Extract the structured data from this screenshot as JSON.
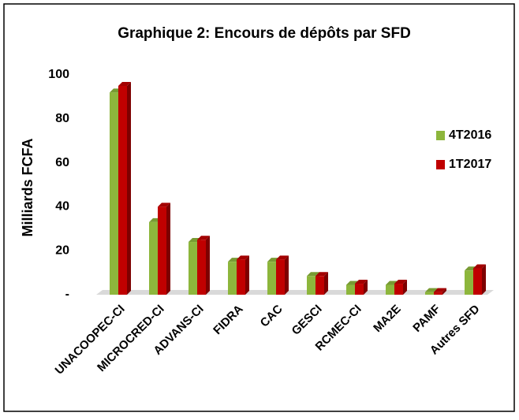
{
  "chart_data": {
    "type": "bar",
    "title": "Graphique 2: Encours de dépôts par SFD",
    "ylabel": "Milliards FCFA",
    "categories": [
      "UNACOOPEC-CI",
      "MICROCRED-CI",
      "ADVANS-CI",
      "FIDRA",
      "CAC",
      "GESCI",
      "RCMEC-CI",
      "MA2E",
      "PAMF",
      "Autres SFD"
    ],
    "series": [
      {
        "name": "4T2016",
        "color": "#8db63c",
        "values": [
          92,
          33,
          24,
          15,
          15,
          8.5,
          4.5,
          4.5,
          1.2,
          11
        ]
      },
      {
        "name": "1T2017",
        "color": "#c00000",
        "values": [
          95,
          40,
          25,
          16,
          16,
          8.5,
          5,
          5,
          1.2,
          12
        ]
      }
    ],
    "ylim": [
      0,
      100
    ],
    "yticks": [
      {
        "value": 0,
        "label": "-"
      },
      20,
      40,
      60,
      80,
      100
    ],
    "legend": "right"
  }
}
